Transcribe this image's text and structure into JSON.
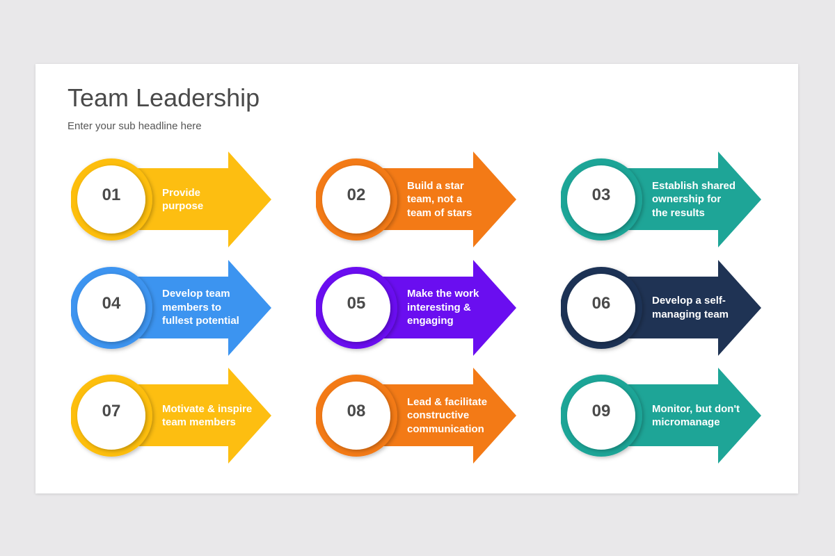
{
  "title": "Team Leadership",
  "subtitle": "Enter your sub headline here",
  "items": [
    {
      "number": "01",
      "text": "Provide\npurpose",
      "color": "#FDBE11"
    },
    {
      "number": "02",
      "text": "Build a star\nteam, not a\nteam of stars",
      "color": "#F37A16"
    },
    {
      "number": "03",
      "text": "Establish shared\nownership for\nthe results",
      "color": "#1EA597"
    },
    {
      "number": "04",
      "text": "Develop team\nmembers to\nfullest potential",
      "color": "#3C94F0"
    },
    {
      "number": "05",
      "text": "Make the work\ninteresting &\nengaging",
      "color": "#6A0EF0"
    },
    {
      "number": "06",
      "text": "Develop a self-\nmanaging team",
      "color": "#1F3354"
    },
    {
      "number": "07",
      "text": "Motivate & inspire\nteam members",
      "color": "#FDBE11"
    },
    {
      "number": "08",
      "text": "Lead & facilitate\nconstructive\ncommunication",
      "color": "#F37A16"
    },
    {
      "number": "09",
      "text": "Monitor, but don't\nmicromanage",
      "color": "#1EA597"
    }
  ]
}
